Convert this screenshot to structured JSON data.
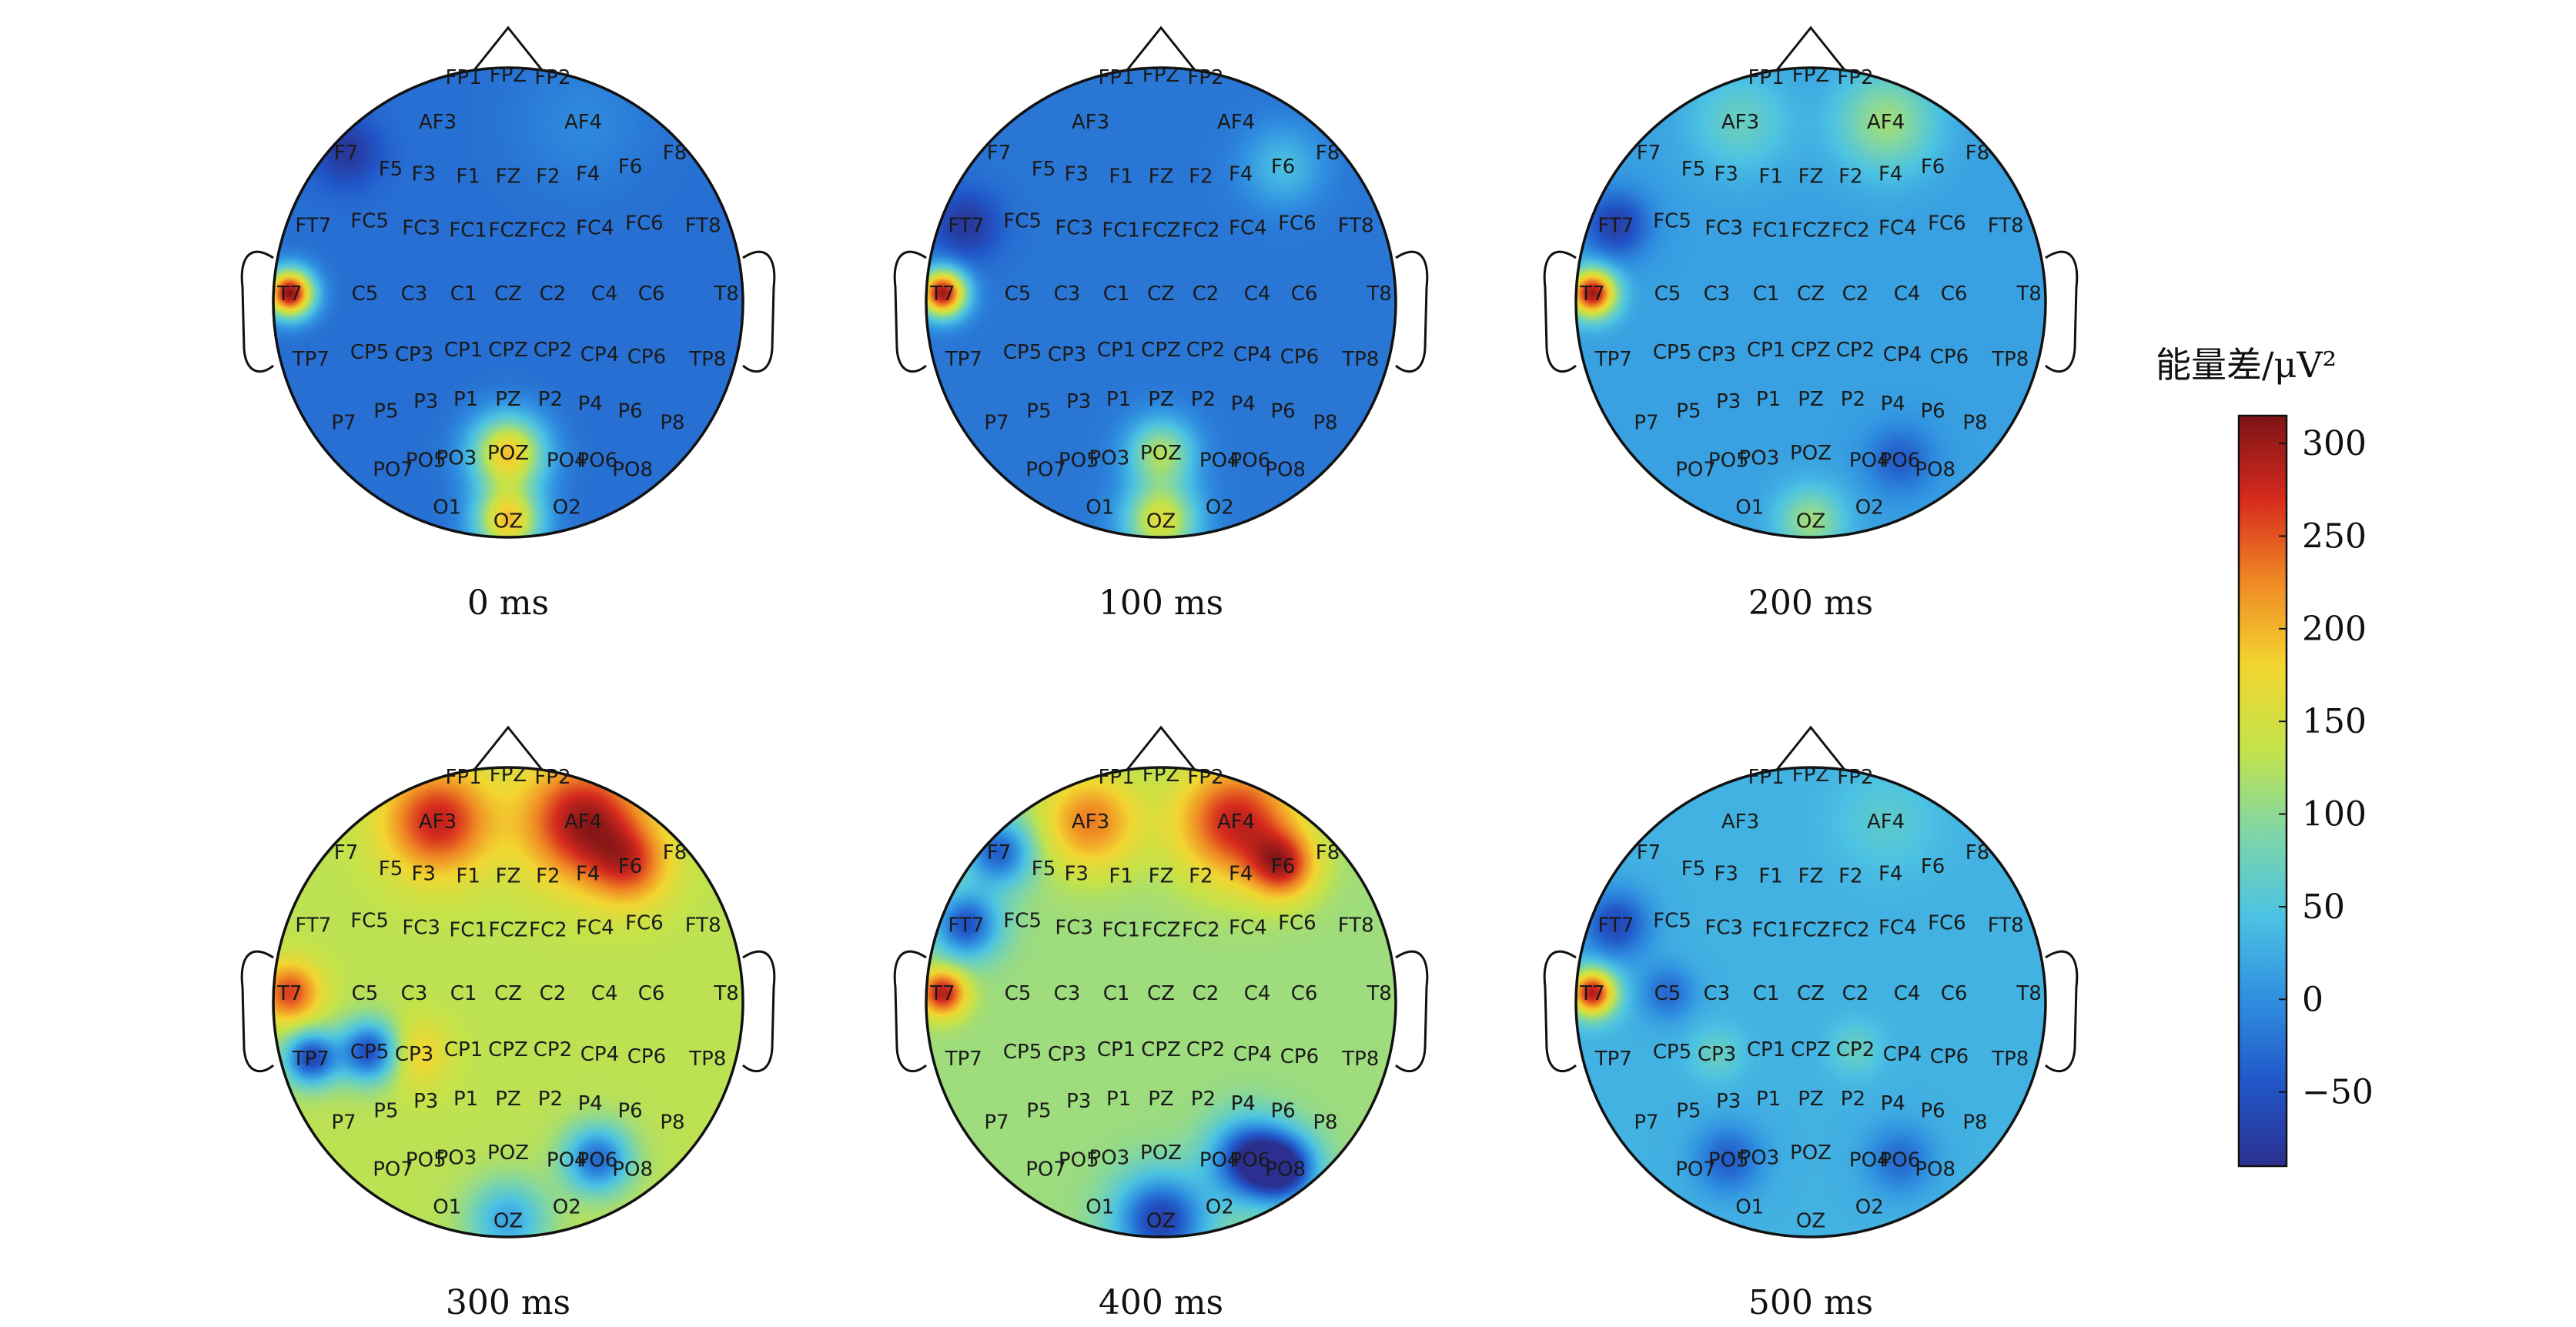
{
  "electrode_labels": [
    "FP1",
    "FPZ",
    "FP2",
    "AF3",
    "AF4",
    "F7",
    "F5",
    "F3",
    "F1",
    "FZ",
    "F2",
    "F4",
    "F6",
    "F8",
    "FT7",
    "FC5",
    "FC3",
    "FC1",
    "FCZ",
    "FC2",
    "FC4",
    "FC6",
    "FT8",
    "T7",
    "C5",
    "C3",
    "C1",
    "CZ",
    "C2",
    "C4",
    "C6",
    "T8",
    "TP7",
    "CP5",
    "CP3",
    "CP1",
    "CPZ",
    "CP2",
    "CP4",
    "CP6",
    "TP8",
    "P7",
    "P5",
    "P3",
    "P1",
    "PZ",
    "P2",
    "P4",
    "P6",
    "P8",
    "PO7",
    "PO5",
    "PO3",
    "POZ",
    "PO4",
    "PO6",
    "PO8",
    "O1",
    "OZ",
    "O2"
  ],
  "colorbar": {
    "title": "能量差/μV²",
    "ticks": [
      "300",
      "250",
      "200",
      "150",
      "100",
      "50",
      "0",
      "−50"
    ],
    "tick_values": [
      300,
      250,
      200,
      150,
      100,
      50,
      0,
      -50
    ],
    "range": [
      -90,
      315
    ],
    "stops": [
      "#2b2f8f",
      "#2156c8",
      "#2f8fe0",
      "#4cc3e3",
      "#7fd6a6",
      "#c4e34a",
      "#f2d631",
      "#f08a24",
      "#d62a1e",
      "#7e1416"
    ]
  },
  "maps": [
    {
      "caption": "0 ms",
      "base": -25,
      "hotspots": [
        {
          "electrode": "T7",
          "value": 310,
          "spread": 0.07
        },
        {
          "electrode": "POZ",
          "value": 190,
          "spread": 0.11
        },
        {
          "electrode": "OZ",
          "value": 190,
          "spread": 0.1
        },
        {
          "electrode": "F7",
          "value": -80,
          "spread": 0.1
        },
        {
          "electrode": "AF4",
          "value": -5,
          "spread": 0.2
        }
      ]
    },
    {
      "caption": "100 ms",
      "base": -20,
      "hotspots": [
        {
          "electrode": "T7",
          "value": 300,
          "spread": 0.07
        },
        {
          "electrode": "OZ",
          "value": 160,
          "spread": 0.11
        },
        {
          "electrode": "POZ",
          "value": 120,
          "spread": 0.1
        },
        {
          "electrode": "F6",
          "value": 40,
          "spread": 0.12
        },
        {
          "electrode": "FT7",
          "value": -80,
          "spread": 0.1
        }
      ]
    },
    {
      "caption": "200 ms",
      "base": 15,
      "hotspots": [
        {
          "electrode": "T7",
          "value": 300,
          "spread": 0.07
        },
        {
          "electrode": "AF4",
          "value": 110,
          "spread": 0.15
        },
        {
          "electrode": "AF3",
          "value": 70,
          "spread": 0.15
        },
        {
          "electrode": "OZ",
          "value": 110,
          "spread": 0.1
        },
        {
          "electrode": "FT7",
          "value": -70,
          "spread": 0.1
        },
        {
          "electrode": "PO6",
          "value": -40,
          "spread": 0.1
        }
      ]
    },
    {
      "caption": "300 ms",
      "base": 130,
      "hotspots": [
        {
          "electrode": "AF4",
          "value": 300,
          "spread": 0.18
        },
        {
          "electrode": "AF3",
          "value": 280,
          "spread": 0.16
        },
        {
          "electrode": "F6",
          "value": 230,
          "spread": 0.12
        },
        {
          "electrode": "T7",
          "value": 260,
          "spread": 0.09
        },
        {
          "electrode": "CP3",
          "value": 190,
          "spread": 0.1
        },
        {
          "electrode": "CP5",
          "value": -60,
          "spread": 0.09
        },
        {
          "electrode": "TP7",
          "value": -60,
          "spread": 0.08
        },
        {
          "electrode": "PO6",
          "value": -30,
          "spread": 0.1
        },
        {
          "electrode": "OZ",
          "value": 20,
          "spread": 0.12
        }
      ]
    },
    {
      "caption": "400 ms",
      "base": 110,
      "hotspots": [
        {
          "electrode": "AF4",
          "value": 280,
          "spread": 0.18
        },
        {
          "electrode": "F6",
          "value": 250,
          "spread": 0.1
        },
        {
          "electrode": "AF3",
          "value": 230,
          "spread": 0.15
        },
        {
          "electrode": "T7",
          "value": 290,
          "spread": 0.07
        },
        {
          "electrode": "FT7",
          "value": -50,
          "spread": 0.1
        },
        {
          "electrode": "F7",
          "value": -40,
          "spread": 0.1
        },
        {
          "electrode": "OZ",
          "value": -70,
          "spread": 0.14
        },
        {
          "electrode": "PO6",
          "value": -80,
          "spread": 0.12
        },
        {
          "electrode": "PO8",
          "value": -60,
          "spread": 0.1
        }
      ]
    },
    {
      "caption": "500 ms",
      "base": 30,
      "hotspots": [
        {
          "electrode": "T7",
          "value": 290,
          "spread": 0.07
        },
        {
          "electrode": "FT7",
          "value": -60,
          "spread": 0.1
        },
        {
          "electrode": "C5",
          "value": -30,
          "spread": 0.08
        },
        {
          "electrode": "CP3",
          "value": 70,
          "spread": 0.08
        },
        {
          "electrode": "CP2",
          "value": 70,
          "spread": 0.08
        },
        {
          "electrode": "AF4",
          "value": 60,
          "spread": 0.15
        },
        {
          "electrode": "PO5",
          "value": -40,
          "spread": 0.1
        },
        {
          "electrode": "PO6",
          "value": -30,
          "spread": 0.1
        }
      ]
    }
  ]
}
